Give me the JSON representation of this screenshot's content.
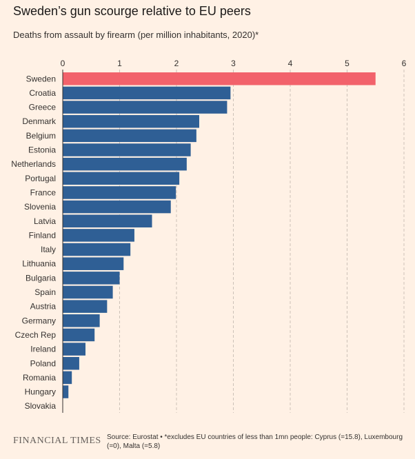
{
  "header": {
    "title": "Sweden’s gun scourge relative to EU peers",
    "subtitle": "Deaths from assault by firearm (per million inhabitants, 2020)*"
  },
  "footer": {
    "brand": "FINANCIAL TIMES",
    "note": "Source: Eurostat • *excludes EU countries of less than 1mn people: Cyprus (=15.8), Luxembourg (=0), Malta (=5.8)"
  },
  "colors": {
    "highlight": "#f2626b",
    "bar": "#2f5f95",
    "background": "#fff1e5"
  },
  "chart_data": {
    "type": "bar",
    "orientation": "horizontal",
    "categories": [
      "Sweden",
      "Croatia",
      "Greece",
      "Denmark",
      "Belgium",
      "Estonia",
      "Netherlands",
      "Portugal",
      "France",
      "Slovenia",
      "Latvia",
      "Finland",
      "Italy",
      "Lithuania",
      "Bulgaria",
      "Spain",
      "Austria",
      "Germany",
      "Czech Rep",
      "Ireland",
      "Poland",
      "Romania",
      "Hungary",
      "Slovakia"
    ],
    "values": [
      5.5,
      2.95,
      2.89,
      2.4,
      2.35,
      2.25,
      2.18,
      2.05,
      1.99,
      1.9,
      1.57,
      1.26,
      1.19,
      1.07,
      1.0,
      0.88,
      0.78,
      0.65,
      0.56,
      0.4,
      0.29,
      0.16,
      0.1,
      0.0
    ],
    "highlight": "Sweden",
    "xlim": [
      0,
      6
    ],
    "xticks": [
      "0",
      "1",
      "2",
      "3",
      "4",
      "5",
      "6"
    ],
    "tick_values": [
      0,
      1,
      2,
      3,
      4,
      5,
      6
    ],
    "grid": true,
    "axis_position": "top"
  }
}
